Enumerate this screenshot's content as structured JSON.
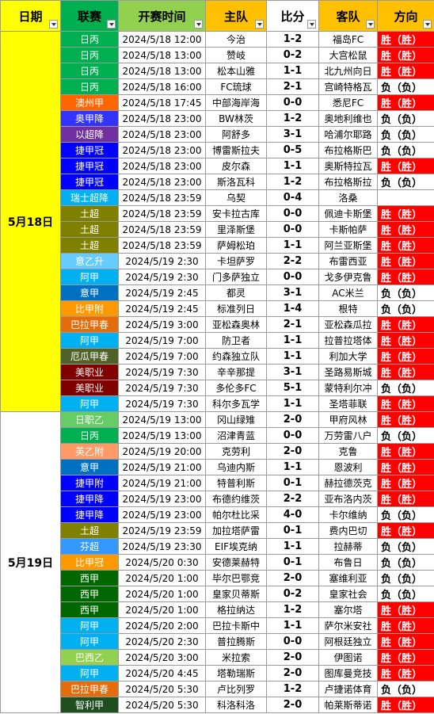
{
  "headers": {
    "date": "日期",
    "league": "联赛",
    "time": "开赛时间",
    "home": "主队",
    "score": "比分",
    "away": "客队",
    "direction": "方向"
  },
  "header_colors": {
    "date": "#ffff00",
    "league": "#00b050",
    "time": "#92d050",
    "home": "#ffc000",
    "score": "#ffffff",
    "away": "#ffc000",
    "direction": "#ffc000"
  },
  "groups": [
    {
      "date": "5月18日",
      "rows": 24,
      "color": "#ffff00"
    },
    {
      "date": "5月19日",
      "rows": 19,
      "color": "#ffffff"
    }
  ],
  "matches": [
    {
      "league": "日丙",
      "league_color": "#00b050",
      "time": "2024/5/18 12:00",
      "home": "今治",
      "score": "1-2",
      "away": "福岛FC",
      "direction": "胜（胜）",
      "result": "win"
    },
    {
      "league": "日丙",
      "league_color": "#00b050",
      "time": "2024/5/18 13:00",
      "home": "赞岐",
      "score": "0-2",
      "away": "大宫松鼠",
      "direction": "胜（胜）",
      "result": "win"
    },
    {
      "league": "日丙",
      "league_color": "#00b050",
      "time": "2024/5/18 13:00",
      "home": "松本山雅",
      "score": "1-1",
      "away": "北九州向日",
      "direction": "胜（胜）",
      "result": "win"
    },
    {
      "league": "日丙",
      "league_color": "#00b050",
      "time": "2024/5/18 16:00",
      "home": "FC琉球",
      "score": "2-1",
      "away": "宫崎特格瓦",
      "direction": "负（负）",
      "result": "lose"
    },
    {
      "league": "澳州甲",
      "league_color": "#ff6600",
      "time": "2024/5/18 17:45",
      "home": "中部海岸海",
      "score": "0-0",
      "away": "悉尼FC",
      "direction": "胜（胜）",
      "result": "win"
    },
    {
      "league": "奥甲降",
      "league_color": "#3333ff",
      "time": "2024/5/18 23:00",
      "home": "BW林茨",
      "score": "1-2",
      "away": "奥地利维也",
      "direction": "负（负）",
      "result": "lose"
    },
    {
      "league": "以超降",
      "league_color": "#7030a0",
      "time": "2024/5/18 23:00",
      "home": "阿舒多",
      "score": "3-1",
      "away": "哈浦尔耶路",
      "direction": "负（负）",
      "result": "lose"
    },
    {
      "league": "捷甲冠",
      "league_color": "#0000ff",
      "time": "2024/5/18 23:00",
      "home": "博雷斯拉夫",
      "score": "0-5",
      "away": "布拉格斯巴",
      "direction": "负（负）",
      "result": "lose"
    },
    {
      "league": "捷甲冠",
      "league_color": "#0000ff",
      "time": "2024/5/18 23:00",
      "home": "皮尔森",
      "score": "1-1",
      "away": "奥斯特拉瓦",
      "direction": "胜（胜）",
      "result": "win"
    },
    {
      "league": "捷甲冠",
      "league_color": "#0000ff",
      "time": "2024/5/18 23:00",
      "home": "斯洛瓦科",
      "score": "1-2",
      "away": "布拉格斯拉",
      "direction": "负（负）",
      "result": "lose"
    },
    {
      "league": "瑞士超降",
      "league_color": "#00b0f0",
      "time": "2024/5/18 23:59",
      "home": "乌契",
      "score": "0-4",
      "away": "洛桑",
      "direction": "",
      "result": "empty"
    },
    {
      "league": "土超",
      "league_color": "#808000",
      "time": "2024/5/18 23:59",
      "home": "安卡拉古库",
      "score": "0-0",
      "away": "佩迪卡斯堡",
      "direction": "胜（胜）",
      "result": "win"
    },
    {
      "league": "土超",
      "league_color": "#808000",
      "time": "2024/5/18 23:59",
      "home": "里泽斯堡",
      "score": "0-0",
      "away": "卡斯帕萨",
      "direction": "胜（胜）",
      "result": "win"
    },
    {
      "league": "土超",
      "league_color": "#808000",
      "time": "2024/5/18 23:59",
      "home": "萨姆松珀",
      "score": "1-1",
      "away": "阿兰亚斯堡",
      "direction": "胜（胜）",
      "result": "win"
    },
    {
      "league": "意乙升",
      "league_color": "#66ccff",
      "time": "2024/5/19 2:30",
      "home": "卡坦萨罗",
      "score": "2-2",
      "away": "布雷西亚",
      "direction": "胜（胜）",
      "result": "win"
    },
    {
      "league": "阿甲",
      "league_color": "#00b0f0",
      "time": "2024/5/19 2:30",
      "home": "门多萨独立",
      "score": "0-0",
      "away": "戈多伊克鲁",
      "direction": "胜（胜）",
      "result": "win"
    },
    {
      "league": "意甲",
      "league_color": "#0070c0",
      "time": "2024/5/19 2:45",
      "home": "都灵",
      "score": "3-1",
      "away": "AC米兰",
      "direction": "负（负）",
      "result": "lose"
    },
    {
      "league": "比甲附",
      "league_color": "#ff9900",
      "time": "2024/5/19 2:45",
      "home": "标准列日",
      "score": "1-4",
      "away": "根特",
      "direction": "负（负）",
      "result": "lose"
    },
    {
      "league": "巴拉甲春",
      "league_color": "#e46c0a",
      "time": "2024/5/19 3:00",
      "home": "亚松森奥林",
      "score": "2-1",
      "away": "亚松森瓜拉",
      "direction": "胜（胜）",
      "result": "win"
    },
    {
      "league": "阿甲",
      "league_color": "#00b0f0",
      "time": "2024/5/19 7:00",
      "home": "防卫者",
      "score": "1-1",
      "away": "拉普拉塔体",
      "direction": "胜（胜）",
      "result": "win"
    },
    {
      "league": "厄瓜甲春",
      "league_color": "#4f6228",
      "time": "2024/5/19 7:00",
      "home": "约森独立队",
      "score": "1-1",
      "away": "利加大学",
      "direction": "胜（胜）",
      "result": "win"
    },
    {
      "league": "美职业",
      "league_color": "#800000",
      "time": "2024/5/19 7:30",
      "home": "辛辛那提",
      "score": "3-1",
      "away": "圣路易斯城",
      "direction": "胜（胜）",
      "result": "win"
    },
    {
      "league": "美职业",
      "league_color": "#800000",
      "time": "2024/5/19 7:30",
      "home": "多伦多FC",
      "score": "5-1",
      "away": "蒙特利尔冲",
      "direction": "负（负）",
      "result": "lose"
    },
    {
      "league": "阿甲",
      "league_color": "#00b0f0",
      "time": "2024/5/19 7:30",
      "home": "科尔多瓦学",
      "score": "1-1",
      "away": "圣塔菲联",
      "direction": "胜（胜）",
      "result": "win"
    },
    {
      "league": "日职乙",
      "league_color": "#66cc66",
      "time": "2024/5/19 13:00",
      "home": "冈山绿雉",
      "score": "2-0",
      "away": "甲府风林",
      "direction": "胜（胜）",
      "result": "win"
    },
    {
      "league": "日丙",
      "league_color": "#00b050",
      "time": "2024/5/19 13:00",
      "home": "沼津青蓝",
      "score": "0-0",
      "away": "万劳雷八户",
      "direction": "负（负）",
      "result": "lose"
    },
    {
      "league": "英乙附",
      "league_color": "#ff9966",
      "time": "2024/5/19 20:00",
      "home": "克劳利",
      "score": "2-0",
      "away": "克鲁",
      "direction": "胜（胜）",
      "result": "win"
    },
    {
      "league": "意甲",
      "league_color": "#0070c0",
      "time": "2024/5/19 21:00",
      "home": "乌迪内斯",
      "score": "1-1",
      "away": "恩波利",
      "direction": "胜（胜）",
      "result": "win"
    },
    {
      "league": "捷甲附",
      "league_color": "#0000ff",
      "time": "2024/5/19 21:00",
      "home": "特普利斯",
      "score": "0-1",
      "away": "赫拉德茨克",
      "direction": "胜（胜）",
      "result": "win"
    },
    {
      "league": "捷甲降",
      "league_color": "#0000ff",
      "time": "2024/5/19 23:00",
      "home": "布德约维茨",
      "score": "2-2",
      "away": "亚布洛内茨",
      "direction": "胜（胜）",
      "result": "win"
    },
    {
      "league": "捷甲降",
      "league_color": "#0000ff",
      "time": "2024/5/19 23:00",
      "home": "帕尔杜比采",
      "score": "4-0",
      "away": "卡尔维纳",
      "direction": "负（负）",
      "result": "lose"
    },
    {
      "league": "土超",
      "league_color": "#808000",
      "time": "2024/5/19 23:59",
      "home": "加拉塔萨雷",
      "score": "0-1",
      "away": "费内巴切",
      "direction": "胜（胜）",
      "result": "win"
    },
    {
      "league": "芬超",
      "league_color": "#3399ff",
      "time": "2024/5/19 23:30",
      "home": "EIF埃克纳",
      "score": "1-1",
      "away": "拉赫蒂",
      "direction": "负（负）",
      "result": "lose"
    },
    {
      "league": "比甲冠",
      "league_color": "#ff9900",
      "time": "2024/5/20 0:30",
      "home": "安德莱赫特",
      "score": "0-1",
      "away": "布鲁日",
      "direction": "负（负）",
      "result": "lose"
    },
    {
      "league": "西甲",
      "league_color": "#006600",
      "time": "2024/5/20 1:00",
      "home": "毕尔巴鄂竞",
      "score": "2-0",
      "away": "塞维利亚",
      "direction": "负（负）",
      "result": "lose"
    },
    {
      "league": "西甲",
      "league_color": "#006600",
      "time": "2024/5/20 1:00",
      "home": "皇家贝蒂斯",
      "score": "0-2",
      "away": "皇家社会",
      "direction": "负（负）",
      "result": "lose"
    },
    {
      "league": "西甲",
      "league_color": "#006600",
      "time": "2024/5/20 1:00",
      "home": "格拉纳达",
      "score": "1-2",
      "away": "塞尔塔",
      "direction": "胜（胜）",
      "result": "win"
    },
    {
      "league": "阿甲",
      "league_color": "#00b0f0",
      "time": "2024/5/20 2:00",
      "home": "巴拉卡斯中",
      "score": "1-1",
      "away": "萨尔米安社",
      "direction": "胜（胜）",
      "result": "win"
    },
    {
      "league": "阿甲",
      "league_color": "#00b0f0",
      "time": "2024/5/20 2:30",
      "home": "普拉腾斯",
      "score": "0-0",
      "away": "阿根廷独立",
      "direction": "胜（胜）",
      "result": "win"
    },
    {
      "league": "巴西乙",
      "league_color": "#92d050",
      "time": "2024/5/20 3:00",
      "home": "米拉索",
      "score": "2-0",
      "away": "伊图诺",
      "direction": "胜（胜）",
      "result": "win"
    },
    {
      "league": "阿甲",
      "league_color": "#00b0f0",
      "time": "2024/5/20 4:45",
      "home": "塔勒瑞斯",
      "score": "2-0",
      "away": "图库曼竞技",
      "direction": "胜（胜）",
      "result": "win"
    },
    {
      "league": "巴拉甲春",
      "league_color": "#e46c0a",
      "time": "2024/5/20 5:30",
      "home": "卢比列罗",
      "score": "1-2",
      "away": "卢捷诺体育",
      "direction": "负（负）",
      "result": "lose"
    },
    {
      "league": "智利甲",
      "league_color": "#1f4e1f",
      "time": "2024/5/20 5:30",
      "home": "科洛科洛",
      "score": "2-0",
      "away": "帕莱斯蒂诺",
      "direction": "胜（胜）",
      "result": "win"
    }
  ]
}
